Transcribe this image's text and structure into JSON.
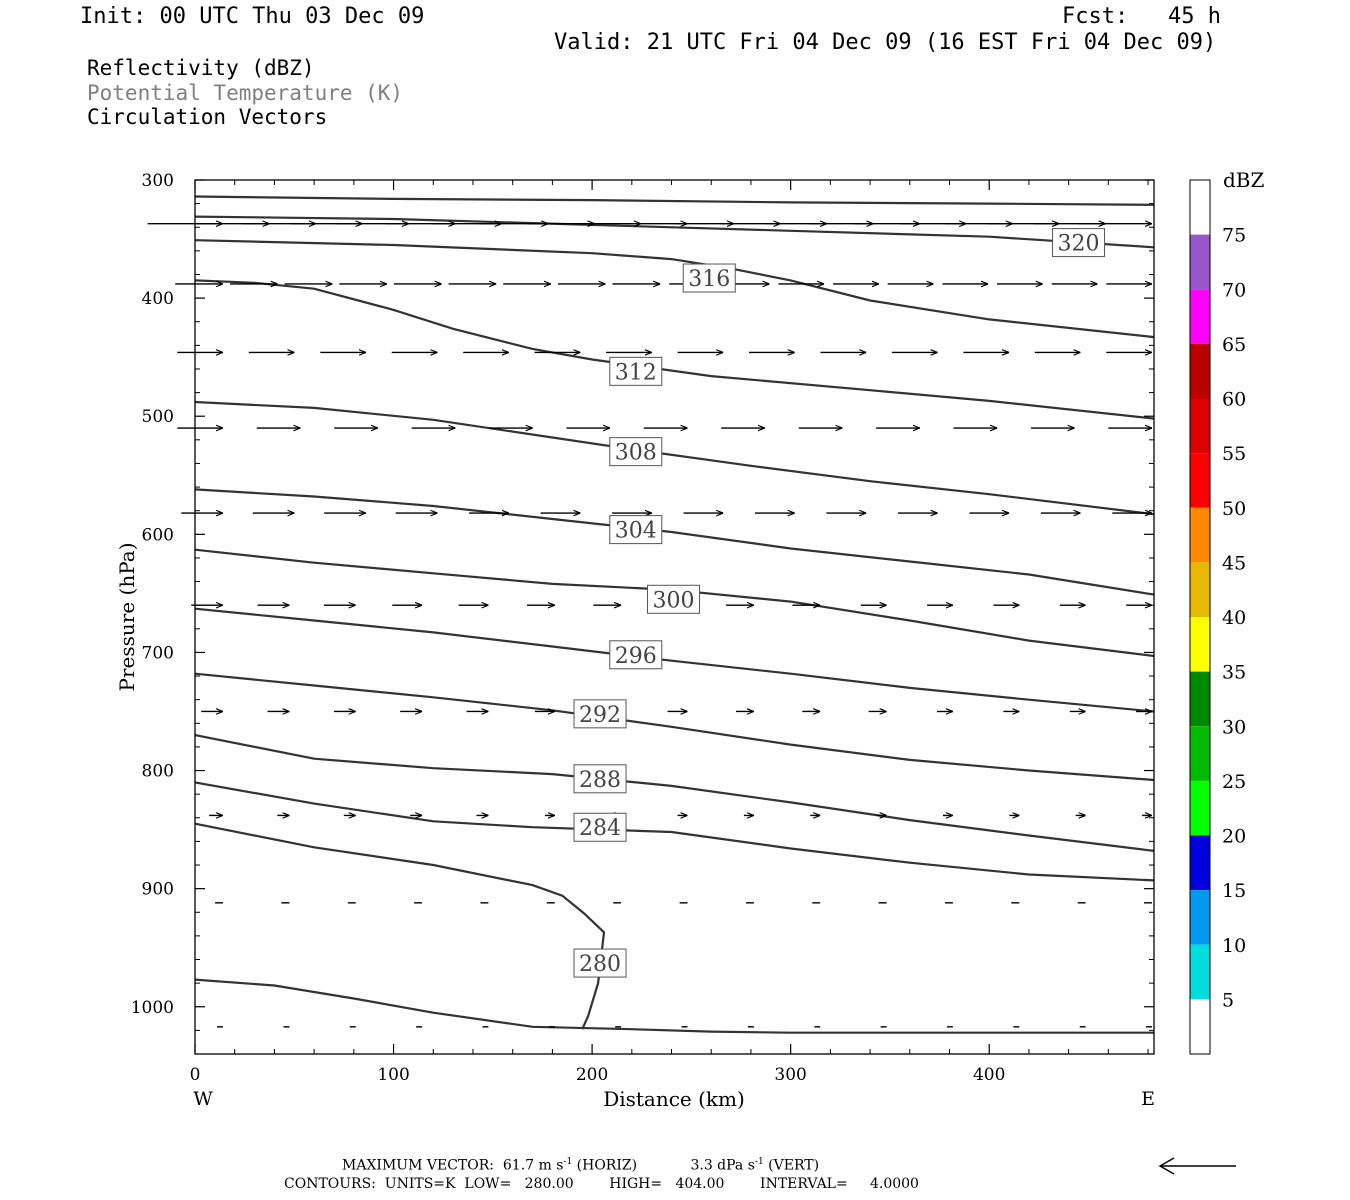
{
  "header": {
    "init": "Init: 00 UTC Thu 03 Dec 09",
    "fcst": "Fcst:   45 h",
    "valid": "Valid: 21 UTC Fri 04 Dec 09 (16 EST Fri 04 Dec 09)"
  },
  "fields": [
    {
      "label": "Reflectivity (dBZ)",
      "color": "#000000"
    },
    {
      "label": "Potential Temperature (K)",
      "color": "#808080"
    },
    {
      "label": "Circulation Vectors",
      "color": "#000000"
    }
  ],
  "chart_data": {
    "type": "contour",
    "xlabel": "Distance (km)",
    "ylabel": "Pressure (hPa)",
    "xlim": [
      0,
      483
    ],
    "ylim": [
      1040,
      300
    ],
    "x_ticks": [
      0,
      100,
      200,
      300,
      400
    ],
    "y_ticks": [
      300,
      400,
      500,
      600,
      700,
      800,
      900,
      1000
    ],
    "x_end_labels": {
      "left": "W",
      "right": "E"
    },
    "contour_color": "#333333",
    "contours": [
      {
        "label": "",
        "points": [
          [
            0,
            314
          ],
          [
            100,
            316
          ],
          [
            200,
            317
          ],
          [
            300,
            319
          ],
          [
            400,
            320
          ],
          [
            483,
            321
          ]
        ]
      },
      {
        "label": "320",
        "label_at": [
          445,
          353
        ],
        "points": [
          [
            0,
            331
          ],
          [
            100,
            333
          ],
          [
            200,
            338
          ],
          [
            300,
            343
          ],
          [
            400,
            348
          ],
          [
            483,
            357
          ]
        ]
      },
      {
        "label": "316",
        "label_at": [
          259,
          383
        ],
        "points": [
          [
            0,
            351
          ],
          [
            100,
            355
          ],
          [
            200,
            362
          ],
          [
            240,
            367
          ],
          [
            270,
            375
          ],
          [
            300,
            385
          ],
          [
            340,
            402
          ],
          [
            400,
            418
          ],
          [
            483,
            433
          ]
        ]
      },
      {
        "label": "312",
        "label_at": [
          222,
          462
        ],
        "points": [
          [
            0,
            385
          ],
          [
            30,
            387
          ],
          [
            60,
            392
          ],
          [
            100,
            410
          ],
          [
            130,
            426
          ],
          [
            170,
            443
          ],
          [
            200,
            452
          ],
          [
            260,
            466
          ],
          [
            340,
            478
          ],
          [
            400,
            487
          ],
          [
            483,
            502
          ]
        ]
      },
      {
        "label": "308",
        "label_at": [
          222,
          530
        ],
        "points": [
          [
            0,
            488
          ],
          [
            60,
            493
          ],
          [
            120,
            503
          ],
          [
            180,
            518
          ],
          [
            220,
            528
          ],
          [
            280,
            542
          ],
          [
            340,
            555
          ],
          [
            400,
            566
          ],
          [
            483,
            583
          ]
        ]
      },
      {
        "label": "304",
        "label_at": [
          222,
          596
        ],
        "points": [
          [
            0,
            562
          ],
          [
            60,
            568
          ],
          [
            120,
            576
          ],
          [
            180,
            587
          ],
          [
            240,
            598
          ],
          [
            300,
            612
          ],
          [
            360,
            623
          ],
          [
            420,
            634
          ],
          [
            483,
            651
          ]
        ]
      },
      {
        "label": "300",
        "label_at": [
          241,
          655
        ],
        "points": [
          [
            0,
            613
          ],
          [
            60,
            624
          ],
          [
            120,
            633
          ],
          [
            180,
            642
          ],
          [
            240,
            647
          ],
          [
            300,
            657
          ],
          [
            360,
            673
          ],
          [
            420,
            690
          ],
          [
            483,
            703
          ]
        ]
      },
      {
        "label": "296",
        "label_at": [
          222,
          702
        ],
        "points": [
          [
            0,
            663
          ],
          [
            60,
            673
          ],
          [
            120,
            683
          ],
          [
            180,
            695
          ],
          [
            240,
            707
          ],
          [
            300,
            718
          ],
          [
            360,
            730
          ],
          [
            420,
            740
          ],
          [
            483,
            750
          ]
        ]
      },
      {
        "label": "292",
        "label_at": [
          204,
          752
        ],
        "points": [
          [
            0,
            718
          ],
          [
            60,
            728
          ],
          [
            120,
            738
          ],
          [
            180,
            749
          ],
          [
            240,
            763
          ],
          [
            300,
            778
          ],
          [
            360,
            791
          ],
          [
            420,
            800
          ],
          [
            483,
            808
          ]
        ]
      },
      {
        "label": "288",
        "label_at": [
          204,
          807
        ],
        "points": [
          [
            0,
            770
          ],
          [
            60,
            790
          ],
          [
            120,
            798
          ],
          [
            180,
            803
          ],
          [
            240,
            813
          ],
          [
            300,
            827
          ],
          [
            360,
            842
          ],
          [
            420,
            855
          ],
          [
            483,
            868
          ]
        ]
      },
      {
        "label": "284",
        "label_at": [
          204,
          848
        ],
        "points": [
          [
            0,
            810
          ],
          [
            60,
            828
          ],
          [
            120,
            843
          ],
          [
            170,
            848
          ],
          [
            240,
            852
          ],
          [
            300,
            866
          ],
          [
            360,
            878
          ],
          [
            420,
            888
          ],
          [
            483,
            893
          ]
        ]
      },
      {
        "label": "280",
        "label_at": [
          204,
          963
        ],
        "points": [
          [
            0,
            845
          ],
          [
            60,
            865
          ],
          [
            120,
            880
          ],
          [
            170,
            897
          ],
          [
            185,
            906
          ],
          [
            196,
            921
          ],
          [
            206,
            937
          ],
          [
            203,
            980
          ],
          [
            198,
            1008
          ],
          [
            195,
            1019
          ]
        ]
      },
      {
        "label": "",
        "points": [
          [
            0,
            977
          ],
          [
            40,
            982
          ],
          [
            80,
            993
          ],
          [
            120,
            1005
          ],
          [
            170,
            1017
          ],
          [
            220,
            1019
          ],
          [
            260,
            1021
          ],
          [
            300,
            1022
          ],
          [
            400,
            1022
          ],
          [
            483,
            1022
          ]
        ]
      }
    ],
    "vector_rows": [
      {
        "pressure": 337,
        "lengths_km": [
          38,
          38,
          37,
          36,
          37,
          35,
          35,
          35,
          34,
          33,
          31,
          30,
          30,
          31,
          32,
          33,
          33,
          34,
          36,
          36,
          37
        ]
      },
      {
        "pressure": 388,
        "lengths_km": [
          24,
          24,
          24,
          24,
          24,
          24,
          24,
          24,
          24,
          23,
          23,
          23,
          23,
          23,
          23,
          23,
          23,
          23
        ]
      },
      {
        "pressure": 446,
        "lengths_km": [
          23,
          23,
          23,
          23,
          23,
          23,
          23,
          23,
          23,
          23,
          23,
          23,
          23,
          23
        ]
      },
      {
        "pressure": 510,
        "lengths_km": [
          23,
          22,
          22,
          22,
          22,
          22,
          22,
          22,
          22,
          22,
          22,
          22,
          22
        ]
      },
      {
        "pressure": 582,
        "lengths_km": [
          21,
          21,
          21,
          21,
          20,
          20,
          20,
          20,
          20,
          20,
          20,
          20,
          20,
          20
        ]
      },
      {
        "pressure": 660,
        "lengths_km": [
          16,
          16,
          16,
          15,
          15,
          14,
          14,
          14,
          14,
          14,
          13,
          13,
          13,
          13,
          13
        ]
      },
      {
        "pressure": 750,
        "lengths_km": [
          11,
          11,
          11,
          11,
          11,
          10,
          10,
          10,
          9,
          9,
          9,
          8,
          8,
          8,
          8
        ]
      },
      {
        "pressure": 838,
        "lengths_km": [
          7,
          6,
          6,
          6,
          6,
          5,
          5,
          5,
          5,
          5,
          5,
          5,
          5,
          5,
          5
        ]
      },
      {
        "pressure": 912,
        "lengths_km": [
          4,
          4,
          4,
          4,
          4,
          4,
          4,
          4,
          4,
          4,
          4,
          4,
          4,
          4,
          4
        ]
      },
      {
        "pressure": 1017,
        "lengths_km": [
          3,
          3,
          3,
          3,
          3,
          3,
          3,
          3,
          3,
          3,
          3,
          3,
          3,
          3,
          3
        ]
      }
    ],
    "colorbar": {
      "title": "dBZ",
      "labels": [
        "75",
        "70",
        "65",
        "60",
        "55",
        "50",
        "45",
        "40",
        "35",
        "30",
        "25",
        "20",
        "15",
        "10",
        "5"
      ],
      "colors": [
        "#ffffff",
        "#9955cc",
        "#ff00ff",
        "#bb0000",
        "#dd0000",
        "#ff0000",
        "#ff8800",
        "#e6b800",
        "#ffff00",
        "#008800",
        "#00bb00",
        "#00ff00",
        "#0000dd",
        "#0099ee",
        "#00dddd",
        "#ffffff"
      ]
    }
  },
  "footer": {
    "line1_left": "MAXIMUM VECTOR:  61.7 m s",
    "line1_sup1": "-1",
    "line1_mid": " (HORIZ)            3.3 dPa s",
    "line1_sup2": "-1",
    "line1_right": " (VERT)",
    "line2": "CONTOURS:  UNITS=K  LOW=   280.00        HIGH=   404.00        INTERVAL=     4.0000"
  }
}
